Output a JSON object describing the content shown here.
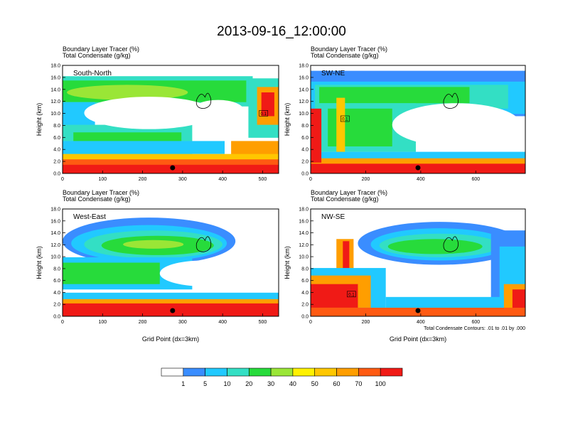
{
  "figure": {
    "title": "2013-09-16_12:00:00",
    "contour_note": "Total Condensate Contours: .01 to .01 by .000"
  },
  "colorbar": {
    "colors": [
      "#ffffff",
      "#3a8dff",
      "#21c9ff",
      "#33dfc4",
      "#27db3b",
      "#9ae636",
      "#fff100",
      "#ffc700",
      "#ff9e00",
      "#ff5a12",
      "#f01a16"
    ],
    "labels": [
      "1",
      "5",
      "10",
      "20",
      "30",
      "40",
      "50",
      "60",
      "70",
      "100"
    ]
  },
  "chart_data": [
    {
      "type": "heatmap",
      "panel": "South-North",
      "title": "Boundary Layer Tracer   (%)",
      "subtitle": "Total Condensate   (g/kg)",
      "ylabel": "Height (km)",
      "xlabel": "",
      "xlim": [
        0,
        540
      ],
      "ylim": [
        0,
        18
      ],
      "xticks": [
        "0",
        "100",
        "200",
        "300",
        "400",
        "500"
      ],
      "yticks": [
        "0.0",
        "2.0",
        "4.0",
        "6.0",
        "8.0",
        "10.0",
        "12.0",
        "14.0",
        "16.0",
        "18.0"
      ],
      "marker_x": 275,
      "inset_label": "0.1"
    },
    {
      "type": "heatmap",
      "panel": "SW-NE",
      "title": "Boundary Layer Tracer   (%)",
      "subtitle": "Total Condensate   (g/kg)",
      "ylabel": "Height (km)",
      "xlabel": "",
      "xlim": [
        0,
        780
      ],
      "ylim": [
        0,
        18
      ],
      "xticks": [
        "0",
        "200",
        "400",
        "600"
      ],
      "yticks": [
        "0.0",
        "2.0",
        "4.0",
        "6.0",
        "8.0",
        "10.0",
        "12.0",
        "14.0",
        "16.0",
        "18.0"
      ],
      "marker_x": 390,
      "inset_label": "0.1"
    },
    {
      "type": "heatmap",
      "panel": "West-East",
      "title": "Boundary Layer Tracer   (%)",
      "subtitle": "Total Condensate   (g/kg)",
      "ylabel": "Height (km)",
      "xlabel": "Grid Point (dx=3km)",
      "xlim": [
        0,
        540
      ],
      "ylim": [
        0,
        18
      ],
      "xticks": [
        "0",
        "100",
        "200",
        "300",
        "400",
        "500"
      ],
      "yticks": [
        "0.0",
        "2.0",
        "4.0",
        "6.0",
        "8.0",
        "10.0",
        "12.0",
        "14.0",
        "16.0",
        "18.0"
      ],
      "marker_x": 275,
      "inset_label": ""
    },
    {
      "type": "heatmap",
      "panel": "NW-SE",
      "title": "Boundary Layer Tracer   (%)",
      "subtitle": "Total Condensate   (g/kg)",
      "ylabel": "Height (km)",
      "xlabel": "Grid Point (dx=3km)",
      "xlim": [
        0,
        780
      ],
      "ylim": [
        0,
        18
      ],
      "xticks": [
        "0",
        "200",
        "400",
        "600"
      ],
      "yticks": [
        "0.0",
        "2.0",
        "4.0",
        "6.0",
        "8.0",
        "10.0",
        "12.0",
        "14.0",
        "16.0",
        "18.0"
      ],
      "marker_x": 390,
      "inset_label": "0.1"
    }
  ]
}
